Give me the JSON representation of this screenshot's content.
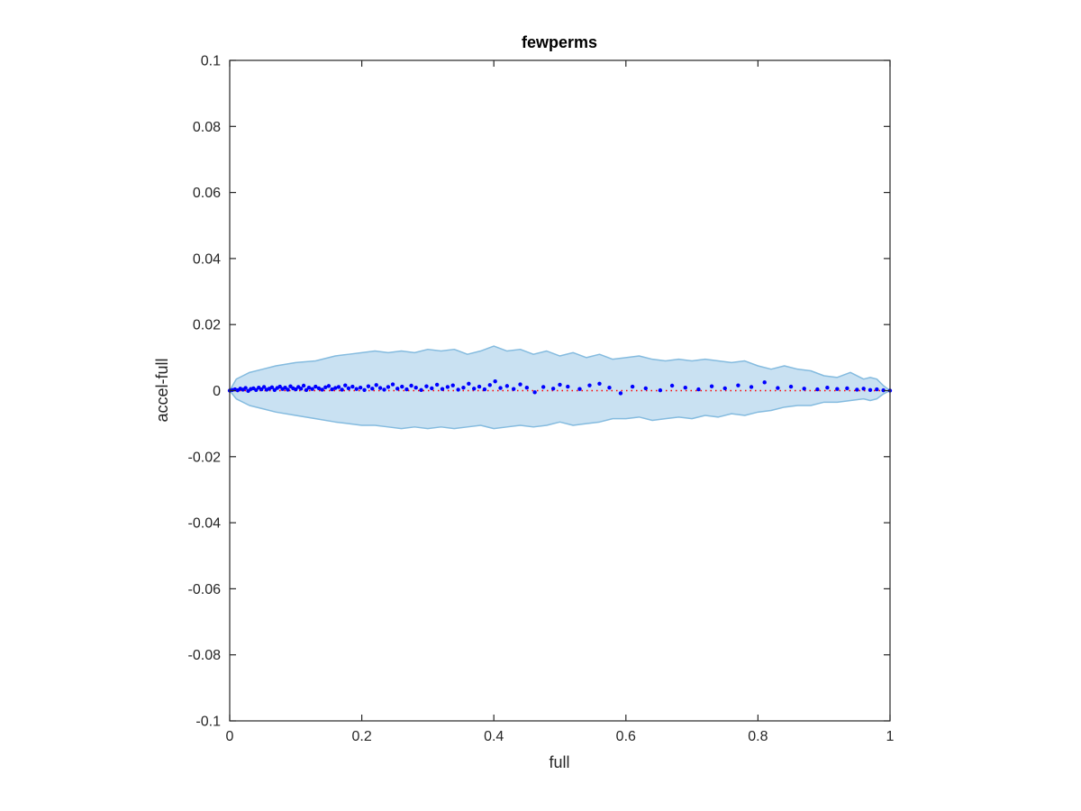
{
  "chart_data": {
    "type": "scatter",
    "title": "fewperms",
    "xlabel": "full",
    "ylabel": "accel-full",
    "xlim": [
      0,
      1
    ],
    "ylim": [
      -0.1,
      0.1
    ],
    "grid": false,
    "xticks": [
      {
        "value": 0,
        "label": "0"
      },
      {
        "value": 0.2,
        "label": "0.2"
      },
      {
        "value": 0.4,
        "label": "0.4"
      },
      {
        "value": 0.6,
        "label": "0.6"
      },
      {
        "value": 0.8,
        "label": "0.8"
      },
      {
        "value": 1,
        "label": "1"
      }
    ],
    "yticks": [
      {
        "value": -0.1,
        "label": "-0.1"
      },
      {
        "value": -0.08,
        "label": "-0.08"
      },
      {
        "value": -0.06,
        "label": "-0.06"
      },
      {
        "value": -0.04,
        "label": "-0.04"
      },
      {
        "value": -0.02,
        "label": "-0.02"
      },
      {
        "value": 0,
        "label": "0"
      },
      {
        "value": 0.02,
        "label": "0.02"
      },
      {
        "value": 0.04,
        "label": "0.04"
      },
      {
        "value": 0.06,
        "label": "0.06"
      },
      {
        "value": 0.08,
        "label": "0.08"
      },
      {
        "value": 0.1,
        "label": "0.1"
      }
    ],
    "reference_line": {
      "y": 0,
      "style": "dotted",
      "color": "#ff0000"
    },
    "band": {
      "fill_color": "#c9e1f2",
      "edge_color": "#84bbdf",
      "upper": [
        [
          0.0,
          0.0
        ],
        [
          0.01,
          0.0035
        ],
        [
          0.02,
          0.0045
        ],
        [
          0.03,
          0.0055
        ],
        [
          0.05,
          0.0065
        ],
        [
          0.07,
          0.0075
        ],
        [
          0.1,
          0.0085
        ],
        [
          0.13,
          0.009
        ],
        [
          0.16,
          0.0105
        ],
        [
          0.18,
          0.011
        ],
        [
          0.2,
          0.0115
        ],
        [
          0.22,
          0.012
        ],
        [
          0.24,
          0.0115
        ],
        [
          0.26,
          0.012
        ],
        [
          0.28,
          0.0115
        ],
        [
          0.3,
          0.0125
        ],
        [
          0.32,
          0.012
        ],
        [
          0.34,
          0.0125
        ],
        [
          0.36,
          0.011
        ],
        [
          0.38,
          0.012
        ],
        [
          0.4,
          0.0135
        ],
        [
          0.42,
          0.012
        ],
        [
          0.44,
          0.0125
        ],
        [
          0.46,
          0.011
        ],
        [
          0.48,
          0.012
        ],
        [
          0.5,
          0.0105
        ],
        [
          0.52,
          0.0115
        ],
        [
          0.54,
          0.01
        ],
        [
          0.56,
          0.011
        ],
        [
          0.58,
          0.0095
        ],
        [
          0.6,
          0.01
        ],
        [
          0.62,
          0.0105
        ],
        [
          0.64,
          0.0095
        ],
        [
          0.66,
          0.009
        ],
        [
          0.68,
          0.0095
        ],
        [
          0.7,
          0.009
        ],
        [
          0.72,
          0.0095
        ],
        [
          0.74,
          0.009
        ],
        [
          0.76,
          0.0085
        ],
        [
          0.78,
          0.009
        ],
        [
          0.8,
          0.0075
        ],
        [
          0.82,
          0.0065
        ],
        [
          0.84,
          0.0075
        ],
        [
          0.86,
          0.0065
        ],
        [
          0.88,
          0.006
        ],
        [
          0.9,
          0.0045
        ],
        [
          0.92,
          0.004
        ],
        [
          0.94,
          0.0055
        ],
        [
          0.96,
          0.0035
        ],
        [
          0.97,
          0.004
        ],
        [
          0.98,
          0.0035
        ],
        [
          0.99,
          0.0015
        ],
        [
          1.0,
          0.0
        ]
      ],
      "lower": [
        [
          0.0,
          0.0
        ],
        [
          0.01,
          -0.0025
        ],
        [
          0.02,
          -0.0035
        ],
        [
          0.03,
          -0.0045
        ],
        [
          0.05,
          -0.0055
        ],
        [
          0.07,
          -0.0065
        ],
        [
          0.1,
          -0.0075
        ],
        [
          0.13,
          -0.0085
        ],
        [
          0.16,
          -0.0095
        ],
        [
          0.18,
          -0.01
        ],
        [
          0.2,
          -0.0105
        ],
        [
          0.22,
          -0.0105
        ],
        [
          0.24,
          -0.011
        ],
        [
          0.26,
          -0.0115
        ],
        [
          0.28,
          -0.011
        ],
        [
          0.3,
          -0.0115
        ],
        [
          0.32,
          -0.011
        ],
        [
          0.34,
          -0.0115
        ],
        [
          0.36,
          -0.011
        ],
        [
          0.38,
          -0.0105
        ],
        [
          0.4,
          -0.0115
        ],
        [
          0.42,
          -0.011
        ],
        [
          0.44,
          -0.0105
        ],
        [
          0.46,
          -0.011
        ],
        [
          0.48,
          -0.0105
        ],
        [
          0.5,
          -0.0095
        ],
        [
          0.52,
          -0.0105
        ],
        [
          0.54,
          -0.01
        ],
        [
          0.56,
          -0.0095
        ],
        [
          0.58,
          -0.0085
        ],
        [
          0.6,
          -0.0085
        ],
        [
          0.62,
          -0.008
        ],
        [
          0.64,
          -0.009
        ],
        [
          0.66,
          -0.0085
        ],
        [
          0.68,
          -0.008
        ],
        [
          0.7,
          -0.0085
        ],
        [
          0.72,
          -0.0075
        ],
        [
          0.74,
          -0.008
        ],
        [
          0.76,
          -0.007
        ],
        [
          0.78,
          -0.0075
        ],
        [
          0.8,
          -0.0065
        ],
        [
          0.82,
          -0.006
        ],
        [
          0.84,
          -0.005
        ],
        [
          0.86,
          -0.0045
        ],
        [
          0.88,
          -0.0045
        ],
        [
          0.9,
          -0.0035
        ],
        [
          0.92,
          -0.0035
        ],
        [
          0.94,
          -0.003
        ],
        [
          0.96,
          -0.0025
        ],
        [
          0.97,
          -0.003
        ],
        [
          0.98,
          -0.0025
        ],
        [
          0.99,
          -0.001
        ],
        [
          1.0,
          0.0
        ]
      ]
    },
    "series": [
      {
        "color": "#0000ff",
        "points": [
          [
            0.0,
            0.0
          ],
          [
            0.004,
            0.0002
          ],
          [
            0.008,
            0.0004
          ],
          [
            0.012,
            0.0001
          ],
          [
            0.016,
            0.0006
          ],
          [
            0.02,
            0.0003
          ],
          [
            0.024,
            0.0008
          ],
          [
            0.028,
            -0.0001
          ],
          [
            0.032,
            0.0005
          ],
          [
            0.036,
            0.0007
          ],
          [
            0.04,
            0.0002
          ],
          [
            0.044,
            0.0009
          ],
          [
            0.048,
            0.0004
          ],
          [
            0.052,
            0.0011
          ],
          [
            0.056,
            0.0003
          ],
          [
            0.06,
            0.0006
          ],
          [
            0.064,
            0.001
          ],
          [
            0.068,
            0.0002
          ],
          [
            0.072,
            0.0008
          ],
          [
            0.076,
            0.0012
          ],
          [
            0.08,
            0.0005
          ],
          [
            0.084,
            0.0009
          ],
          [
            0.088,
            0.0003
          ],
          [
            0.092,
            0.0013
          ],
          [
            0.096,
            0.0007
          ],
          [
            0.1,
            0.0004
          ],
          [
            0.104,
            0.0011
          ],
          [
            0.108,
            0.0006
          ],
          [
            0.112,
            0.0015
          ],
          [
            0.116,
            0.0002
          ],
          [
            0.12,
            0.0009
          ],
          [
            0.125,
            0.0005
          ],
          [
            0.13,
            0.0012
          ],
          [
            0.135,
            0.0007
          ],
          [
            0.14,
            0.0003
          ],
          [
            0.145,
            0.001
          ],
          [
            0.15,
            0.0014
          ],
          [
            0.155,
            0.0004
          ],
          [
            0.16,
            0.0008
          ],
          [
            0.165,
            0.0011
          ],
          [
            0.17,
            0.0003
          ],
          [
            0.175,
            0.0016
          ],
          [
            0.18,
            0.0007
          ],
          [
            0.186,
            0.0012
          ],
          [
            0.192,
            0.0005
          ],
          [
            0.198,
            0.0009
          ],
          [
            0.204,
            0.0002
          ],
          [
            0.21,
            0.0013
          ],
          [
            0.216,
            0.0006
          ],
          [
            0.222,
            0.0017
          ],
          [
            0.228,
            0.0008
          ],
          [
            0.234,
            0.0003
          ],
          [
            0.24,
            0.0011
          ],
          [
            0.247,
            0.0019
          ],
          [
            0.254,
            0.0006
          ],
          [
            0.261,
            0.0012
          ],
          [
            0.268,
            0.0004
          ],
          [
            0.275,
            0.0015
          ],
          [
            0.282,
            0.0009
          ],
          [
            0.29,
            0.0002
          ],
          [
            0.298,
            0.0013
          ],
          [
            0.306,
            0.0007
          ],
          [
            0.314,
            0.0018
          ],
          [
            0.322,
            0.0005
          ],
          [
            0.33,
            0.0011
          ],
          [
            0.338,
            0.0016
          ],
          [
            0.346,
            0.0003
          ],
          [
            0.354,
            0.0009
          ],
          [
            0.362,
            0.0021
          ],
          [
            0.37,
            0.0006
          ],
          [
            0.378,
            0.0012
          ],
          [
            0.386,
            0.0004
          ],
          [
            0.394,
            0.0017
          ],
          [
            0.402,
            0.0028
          ],
          [
            0.41,
            0.0008
          ],
          [
            0.42,
            0.0014
          ],
          [
            0.43,
            0.0005
          ],
          [
            0.44,
            0.0019
          ],
          [
            0.45,
            0.0009
          ],
          [
            0.462,
            -0.0005
          ],
          [
            0.475,
            0.0011
          ],
          [
            0.49,
            0.0006
          ],
          [
            0.5,
            0.0018
          ],
          [
            0.512,
            0.0012
          ],
          [
            0.53,
            0.0005
          ],
          [
            0.545,
            0.0016
          ],
          [
            0.56,
            0.0021
          ],
          [
            0.575,
            0.0009
          ],
          [
            0.592,
            -0.0008
          ],
          [
            0.61,
            0.0012
          ],
          [
            0.63,
            0.0007
          ],
          [
            0.652,
            0.0001
          ],
          [
            0.67,
            0.0015
          ],
          [
            0.69,
            0.0009
          ],
          [
            0.71,
            0.0004
          ],
          [
            0.73,
            0.0013
          ],
          [
            0.75,
            0.0007
          ],
          [
            0.77,
            0.0016
          ],
          [
            0.79,
            0.0011
          ],
          [
            0.81,
            0.0025
          ],
          [
            0.83,
            0.0008
          ],
          [
            0.85,
            0.0012
          ],
          [
            0.87,
            0.0006
          ],
          [
            0.89,
            0.0004
          ],
          [
            0.905,
            0.0009
          ],
          [
            0.92,
            0.0005
          ],
          [
            0.935,
            0.0007
          ],
          [
            0.95,
            0.0003
          ],
          [
            0.96,
            0.0006
          ],
          [
            0.97,
            0.0002
          ],
          [
            0.98,
            0.0004
          ],
          [
            0.99,
            0.0001
          ],
          [
            1.0,
            0.0
          ]
        ]
      }
    ]
  }
}
